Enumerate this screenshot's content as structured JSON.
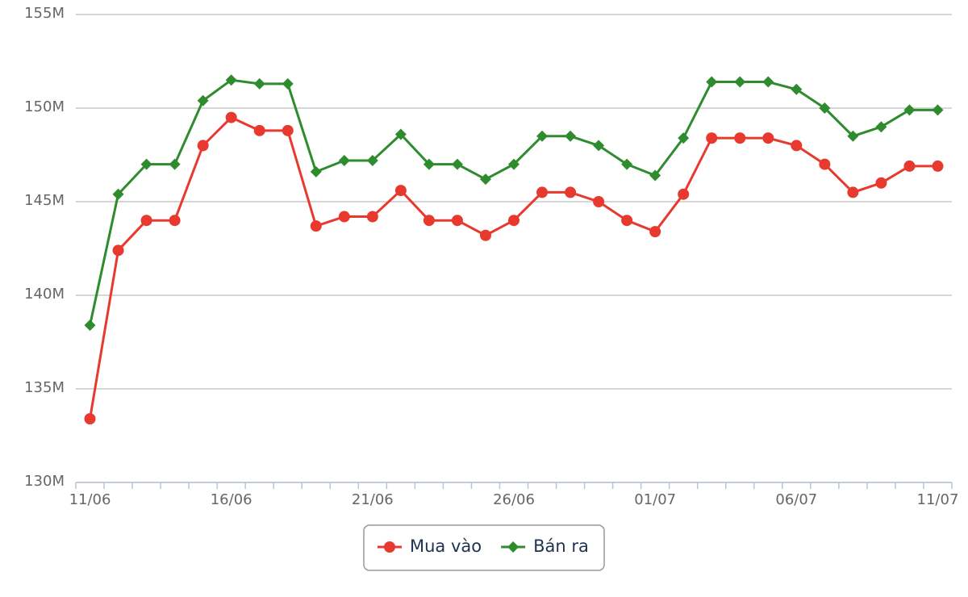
{
  "chart_data": {
    "type": "line",
    "categories": [
      "11/06",
      null,
      null,
      null,
      null,
      "16/06",
      null,
      null,
      null,
      null,
      "21/06",
      null,
      null,
      null,
      null,
      "26/06",
      null,
      null,
      null,
      null,
      "01/07",
      null,
      null,
      null,
      null,
      "06/07",
      null,
      null,
      null,
      null,
      "11/07"
    ],
    "series": [
      {
        "name": "Mua vào",
        "color": "#e8392f",
        "marker": "circle",
        "values": [
          133400000,
          142400000,
          144000000,
          144000000,
          148000000,
          149500000,
          148800000,
          148800000,
          143700000,
          144200000,
          144200000,
          145600000,
          144000000,
          144000000,
          143200000,
          144000000,
          145500000,
          145500000,
          145000000,
          144000000,
          143400000,
          145400000,
          148400000,
          148400000,
          148400000,
          148000000,
          147000000,
          145500000,
          146000000,
          146900000,
          146900000
        ]
      },
      {
        "name": "Bán ra",
        "color": "#2e8b2e",
        "marker": "diamond",
        "values": [
          138400000,
          145400000,
          147000000,
          147000000,
          150400000,
          151500000,
          151300000,
          151300000,
          146600000,
          147200000,
          147200000,
          148600000,
          147000000,
          147000000,
          146200000,
          147000000,
          148500000,
          148500000,
          148000000,
          147000000,
          146400000,
          148400000,
          151400000,
          151400000,
          151400000,
          151000000,
          150000000,
          148500000,
          149000000,
          149900000,
          149900000
        ]
      }
    ],
    "ylim": [
      130000000,
      155000000
    ],
    "yticks": [
      {
        "value": 130000000,
        "label": "130M"
      },
      {
        "value": 135000000,
        "label": "135M"
      },
      {
        "value": 140000000,
        "label": "140M"
      },
      {
        "value": 145000000,
        "label": "145M"
      },
      {
        "value": 150000000,
        "label": "150M"
      },
      {
        "value": 155000000,
        "label": "155M"
      }
    ],
    "grid": true
  }
}
